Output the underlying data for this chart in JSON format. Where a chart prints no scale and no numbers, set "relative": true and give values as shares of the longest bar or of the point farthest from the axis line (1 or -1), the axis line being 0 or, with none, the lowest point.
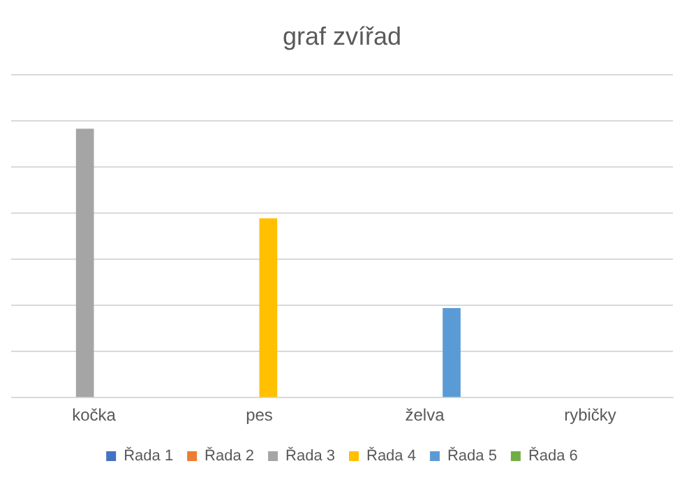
{
  "chart_data": {
    "type": "bar",
    "title": "graf zvířad",
    "categories": [
      "kočka",
      "pes",
      "želva",
      "rybičky"
    ],
    "relative": true,
    "grid": "y",
    "legend": "bottom",
    "series": [
      {
        "name": "Řada 1",
        "color": "#4472c4",
        "values": [
          null,
          null,
          null,
          null
        ]
      },
      {
        "name": "Řada 2",
        "color": "#ed7d31",
        "values": [
          null,
          null,
          null,
          null
        ]
      },
      {
        "name": "Řada 3",
        "color": "#a5a5a5",
        "values": [
          1,
          null,
          null,
          null
        ]
      },
      {
        "name": "Řada 4",
        "color": "#ffc000",
        "values": [
          null,
          0.667,
          null,
          null
        ]
      },
      {
        "name": "Řada 5",
        "color": "#5b9bd5",
        "values": [
          null,
          null,
          0.333,
          null
        ]
      },
      {
        "name": "Řada 6",
        "color": "#70ad47",
        "values": [
          null,
          null,
          null,
          null
        ]
      }
    ]
  }
}
